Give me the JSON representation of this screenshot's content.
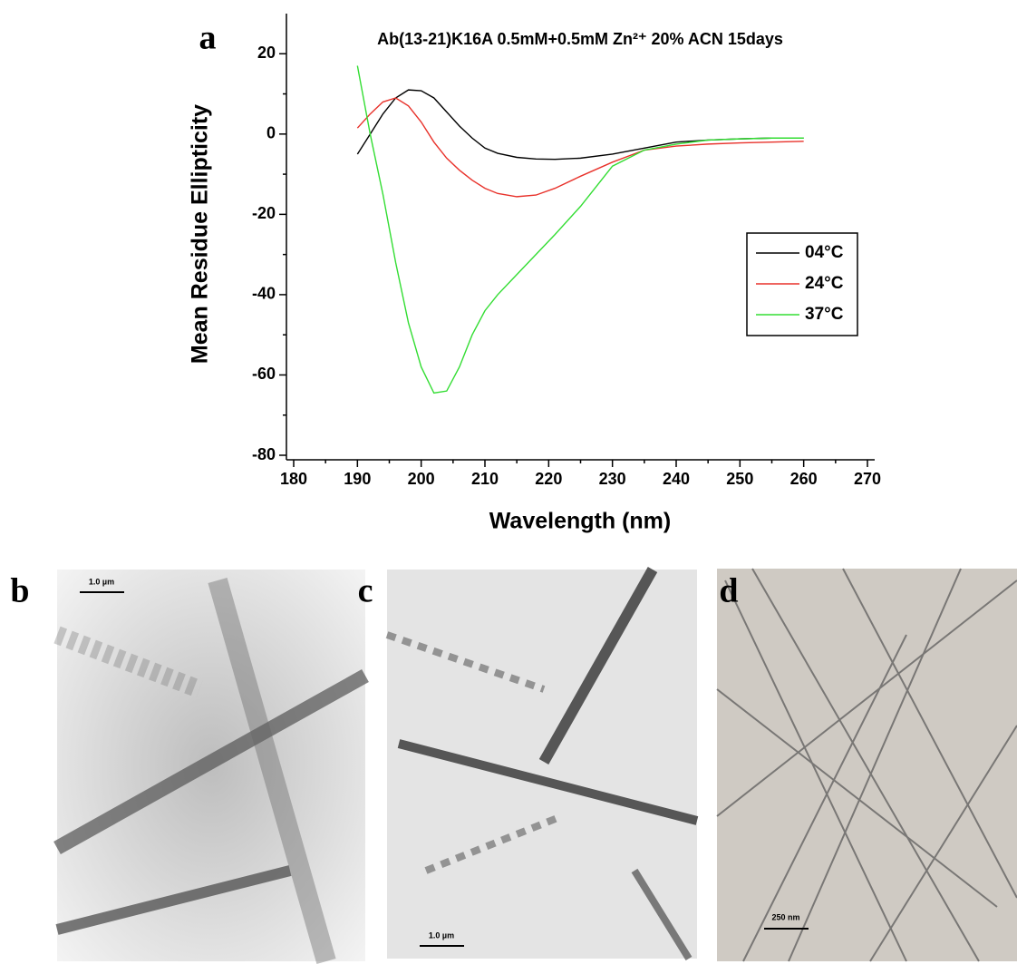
{
  "chart_data": {
    "type": "line",
    "title": "Ab(13-21)K16A 0.5mM+0.5mM Zn²⁺ 20% ACN 15days",
    "x_label": "Wavelength (nm)",
    "y_label": "Mean Residue Ellipticity",
    "x": [
      190,
      192,
      194,
      196,
      198,
      200,
      202,
      204,
      206,
      208,
      210,
      212,
      215,
      218,
      221,
      225,
      230,
      235,
      240,
      245,
      250,
      255,
      260
    ],
    "series": [
      {
        "name": "04°C",
        "color": "#000000",
        "values": [
          -5,
          0,
          5,
          9,
          11,
          10.8,
          9,
          5.5,
          2,
          -1,
          -3.5,
          -4.8,
          -5.8,
          -6.2,
          -6.3,
          -6,
          -5,
          -3.5,
          -2,
          -1.5,
          -1.2,
          -1,
          -1
        ]
      },
      {
        "name": "24°C",
        "color": "#e8322b",
        "values": [
          1.5,
          5,
          8,
          9,
          7,
          3,
          -2,
          -6,
          -9,
          -11.5,
          -13.5,
          -14.8,
          -15.6,
          -15.2,
          -13.5,
          -10.5,
          -7,
          -4,
          -3,
          -2.5,
          -2.2,
          -2,
          -1.8
        ]
      },
      {
        "name": "37°C",
        "color": "#33dd33",
        "values": [
          17,
          0,
          -15,
          -32,
          -47,
          -58,
          -64.5,
          -64,
          -58,
          -50,
          -44,
          -40,
          -35,
          -30,
          -25,
          -18,
          -8,
          -4,
          -2.5,
          -1.5,
          -1.2,
          -1,
          -1
        ]
      }
    ],
    "xlim": [
      180,
      270
    ],
    "xticks": [
      180,
      190,
      200,
      210,
      220,
      230,
      240,
      250,
      260,
      270
    ],
    "ylim": [
      -80,
      30
    ],
    "yticks": [
      -80,
      -60,
      -40,
      -20,
      0,
      20
    ],
    "grid": false,
    "legend": "right"
  },
  "panels": [
    {
      "label": "a"
    },
    {
      "label": "b",
      "scale_bar": "1.0 µm"
    },
    {
      "label": "c",
      "scale_bar": "1.0 µm"
    },
    {
      "label": "d",
      "scale_bar": "250 nm"
    }
  ]
}
